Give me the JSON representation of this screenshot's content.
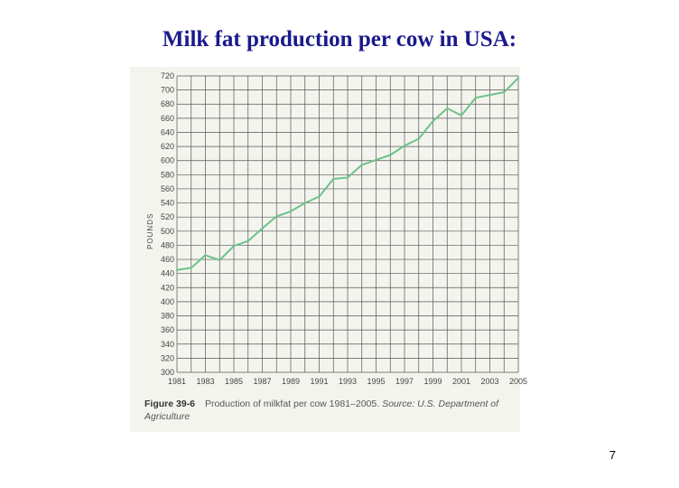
{
  "slide": {
    "title": "Milk fat production per cow in USA:",
    "page_number": "7"
  },
  "caption": {
    "figure_label": "Figure 39-6",
    "text": "Production of milkfat per cow 1981–2005.",
    "source": "Source: U.S. Department of Agriculture"
  },
  "colors": {
    "line": "#6dc28a",
    "grid": "#555555",
    "panel": "#f4f4ee",
    "title": "#1a1a8c"
  },
  "chart_data": {
    "type": "line",
    "title": "",
    "xlabel": "",
    "ylabel": "POUNDS",
    "xlim": [
      1981,
      2005
    ],
    "ylim": [
      300,
      720
    ],
    "grid": true,
    "x_ticks": [
      1981,
      1983,
      1985,
      1987,
      1989,
      1991,
      1993,
      1995,
      1997,
      1999,
      2001,
      2003,
      2005
    ],
    "y_ticks": [
      300,
      320,
      340,
      360,
      380,
      400,
      420,
      440,
      460,
      480,
      500,
      520,
      540,
      560,
      580,
      600,
      620,
      640,
      660,
      680,
      700,
      720
    ],
    "series": [
      {
        "x": [
          1981,
          1982,
          1983,
          1984,
          1985,
          1986,
          1987,
          1988,
          1989,
          1990,
          1991,
          1992,
          1993,
          1994,
          1995,
          1996,
          1997,
          1998,
          1999,
          2000,
          2001,
          2002,
          2003,
          2004,
          2005
        ],
        "values": [
          445,
          448,
          466,
          459,
          479,
          486,
          504,
          521,
          528,
          540,
          549,
          574,
          576,
          594,
          601,
          608,
          621,
          631,
          656,
          674,
          664,
          689,
          693,
          697,
          717
        ]
      }
    ]
  }
}
